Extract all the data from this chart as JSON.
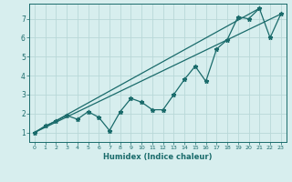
{
  "xlabel": "Humidex (Indice chaleur)",
  "ylabel": "",
  "bg_color": "#d7eeee",
  "grid_color": "#b8d8d8",
  "line_color": "#1a6b6b",
  "xlim": [
    -0.5,
    23.5
  ],
  "ylim": [
    0.5,
    7.8
  ],
  "xticks": [
    0,
    1,
    2,
    3,
    4,
    5,
    6,
    7,
    8,
    9,
    10,
    11,
    12,
    13,
    14,
    15,
    16,
    17,
    18,
    19,
    20,
    21,
    22,
    23
  ],
  "yticks": [
    1,
    2,
    3,
    4,
    5,
    6,
    7
  ],
  "line1_x": [
    0,
    1,
    2,
    3,
    4,
    5,
    6,
    7,
    8,
    9,
    10,
    11,
    12,
    13,
    14,
    15,
    16,
    17,
    18,
    19,
    20,
    21,
    22,
    23
  ],
  "line1_y": [
    1.0,
    1.35,
    1.6,
    1.9,
    1.7,
    2.1,
    1.8,
    1.1,
    2.1,
    2.8,
    2.6,
    2.2,
    2.2,
    3.0,
    3.8,
    4.5,
    3.7,
    5.4,
    5.9,
    7.1,
    7.0,
    7.55,
    6.0,
    7.25
  ],
  "line2_x": [
    0,
    21
  ],
  "line2_y": [
    1.0,
    7.55
  ],
  "line3_x": [
    0,
    23
  ],
  "line3_y": [
    1.0,
    7.25
  ],
  "marker": "*",
  "markersize": 3.5,
  "linewidth": 0.9
}
